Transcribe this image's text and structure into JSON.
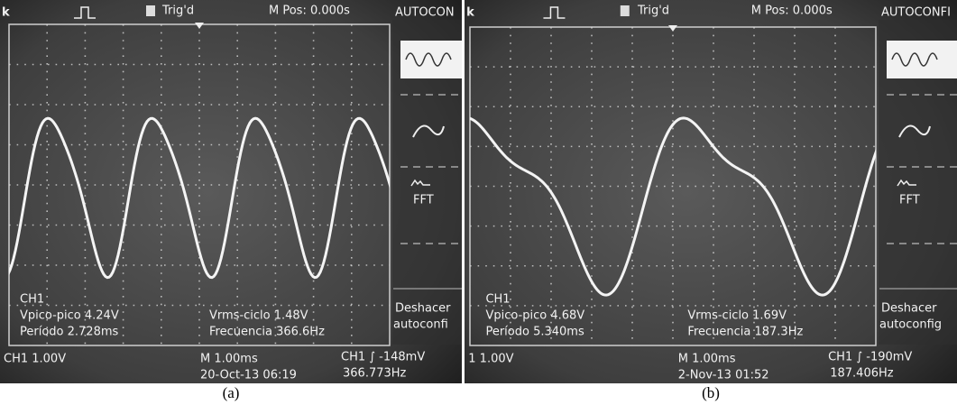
{
  "panels": [
    {
      "header": {
        "logo": "k",
        "trigger": "Trig'd",
        "position": "M Pos: 0.000s",
        "menu_title": "AUTOCON"
      },
      "menu": {
        "fft": "FFT",
        "undo_line1": "Deshacer",
        "undo_line2": "autoconfi"
      },
      "measurements": {
        "channel": "CH1",
        "vpp": "Vpico-pico 4.24V",
        "period": "Período 2.728ms",
        "vrms": "Vrms-ciclo 1.48V",
        "frequency": "Frecuencia 366.6Hz"
      },
      "footer": {
        "scale": "CH1 1.00V",
        "timebase": "M 1.00ms",
        "trigger_level": "CH1 ∫ -148mV",
        "date": "20-Oct-13 06:19",
        "counter": "366.773Hz"
      },
      "caption": "(a)"
    },
    {
      "header": {
        "logo": "k",
        "trigger": "Trig'd",
        "position": "M Pos: 0.000s",
        "menu_title": "AUTOCONFI"
      },
      "menu": {
        "fft": "FFT",
        "undo_line1": "Deshacer",
        "undo_line2": "autoconfig"
      },
      "measurements": {
        "channel": "CH1",
        "vpp": "Vpico-pico 4.68V",
        "period": "Período 5.340ms",
        "vrms": "Vrms-ciclo 1.69V",
        "frequency": "Frecuencia 187.3Hz"
      },
      "footer": {
        "scale": "1 1.00V",
        "timebase": "M 1.00ms",
        "trigger_level": "CH1 ∫ -190mV",
        "date": "2-Nov-13 01:52",
        "counter": "187.406Hz"
      },
      "caption": "(b)"
    }
  ]
}
